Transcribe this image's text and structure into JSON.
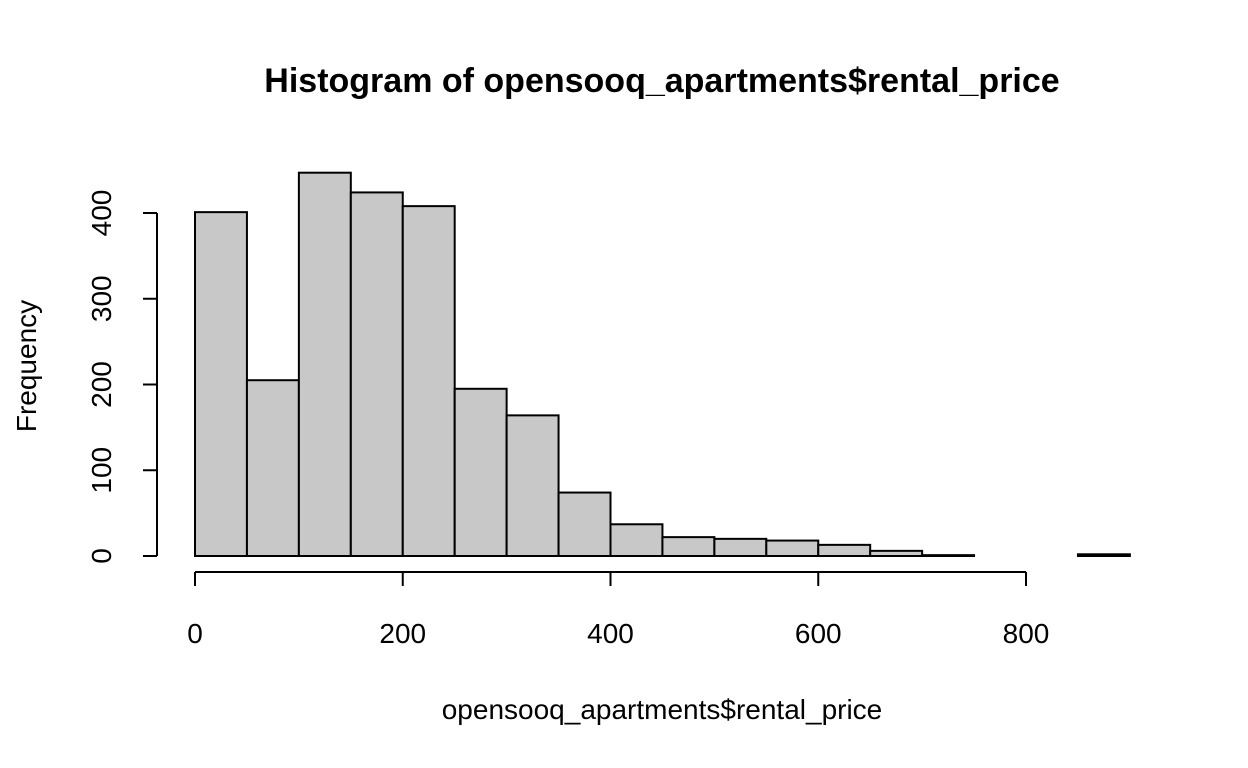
{
  "chart_data": {
    "type": "bar",
    "title": "Histogram of opensooq_apartments$rental_price",
    "xlabel": "opensooq_apartments$rental_price",
    "ylabel": "Frequency",
    "bin_width": 50,
    "bins": [
      {
        "start": 0,
        "end": 50,
        "count": 401
      },
      {
        "start": 50,
        "end": 100,
        "count": 205
      },
      {
        "start": 100,
        "end": 150,
        "count": 447
      },
      {
        "start": 150,
        "end": 200,
        "count": 424
      },
      {
        "start": 200,
        "end": 250,
        "count": 408
      },
      {
        "start": 250,
        "end": 300,
        "count": 195
      },
      {
        "start": 300,
        "end": 350,
        "count": 164
      },
      {
        "start": 350,
        "end": 400,
        "count": 74
      },
      {
        "start": 400,
        "end": 450,
        "count": 37
      },
      {
        "start": 450,
        "end": 500,
        "count": 22
      },
      {
        "start": 500,
        "end": 550,
        "count": 20
      },
      {
        "start": 550,
        "end": 600,
        "count": 18
      },
      {
        "start": 600,
        "end": 650,
        "count": 13
      },
      {
        "start": 650,
        "end": 700,
        "count": 6
      },
      {
        "start": 700,
        "end": 750,
        "count": 1
      },
      {
        "start": 750,
        "end": 800,
        "count": 0
      },
      {
        "start": 800,
        "end": 850,
        "count": 0
      },
      {
        "start": 850,
        "end": 900,
        "count": 2
      }
    ],
    "x_ticks": [
      "0",
      "200",
      "400",
      "600",
      "800"
    ],
    "y_ticks": [
      "0",
      "100",
      "200",
      "300",
      "400"
    ],
    "xlim": [
      0,
      900
    ],
    "ylim": [
      0,
      400
    ],
    "grid": false,
    "bar_color": "#c8c8c8"
  }
}
